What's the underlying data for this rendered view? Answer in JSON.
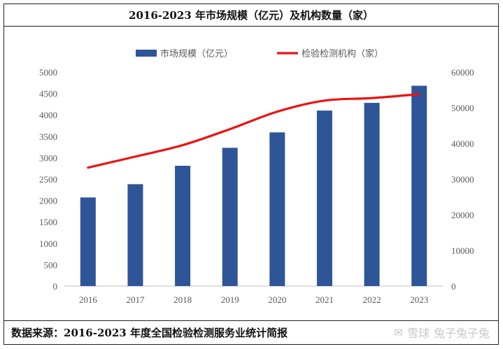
{
  "chart_data": {
    "type": "bar",
    "title": "2016-2023 年市场规模（亿元）及机构数量（家）",
    "categories": [
      "2016",
      "2017",
      "2018",
      "2019",
      "2020",
      "2021",
      "2022",
      "2023"
    ],
    "series": [
      {
        "name": "市场规模（亿元）",
        "kind": "bar",
        "axis": "left",
        "color": "#2e5597",
        "values": [
          2070,
          2380,
          2810,
          3230,
          3590,
          4100,
          4280,
          4680
        ]
      },
      {
        "name": "检验检测机构（家）",
        "kind": "line",
        "axis": "right",
        "color": "#ee1111",
        "values": [
          33200,
          36300,
          39500,
          44000,
          48900,
          52000,
          52700,
          53800
        ]
      }
    ],
    "y_left": {
      "min": 0,
      "max": 5000,
      "step": 500,
      "tick_labels": [
        "0",
        "500",
        "1000",
        "1500",
        "2000",
        "2500",
        "3000",
        "3500",
        "4000",
        "4500",
        "5000"
      ]
    },
    "y_right": {
      "min": 0,
      "max": 60000,
      "step": 10000,
      "tick_labels": [
        "0",
        "10000",
        "20000",
        "30000",
        "40000",
        "50000",
        "60000"
      ]
    },
    "legend_position": "top-center",
    "grid": false
  },
  "footer": {
    "source": "数据来源：2016-2023 年度全国检验检测服务业统计简报",
    "watermark_logo": "雪球",
    "watermark_user": "兔子兔子兔"
  },
  "colors": {
    "bar": "#2e5597",
    "line": "#ee1111",
    "axis": "#bfbfbf",
    "text": "#595959"
  }
}
